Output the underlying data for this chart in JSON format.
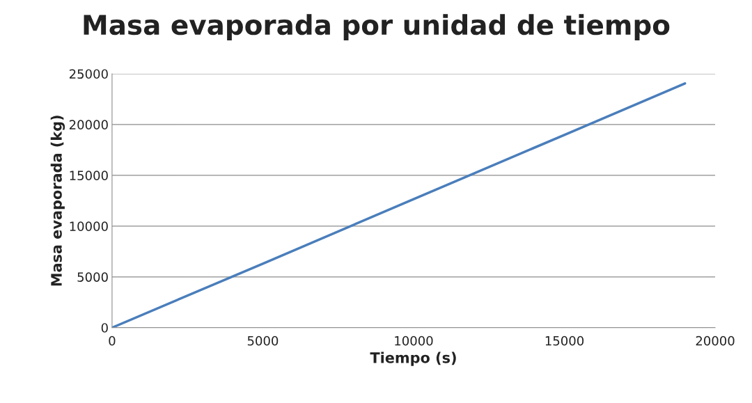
{
  "chart_data": {
    "type": "line",
    "title": "Masa evaporada por unidad de tiempo",
    "xlabel": "Tiempo (s)",
    "ylabel": "Masa evaporada (kg)",
    "x": [
      0,
      5000,
      10000,
      15000,
      19000
    ],
    "series": [
      {
        "color": "#4a7ebb",
        "values": [
          0,
          6300,
          12650,
          18980,
          24050
        ]
      }
    ],
    "xlim": [
      0,
      20000
    ],
    "xticks": [
      0,
      5000,
      10000,
      15000,
      20000
    ],
    "ylim": [
      0,
      25000
    ],
    "yticks": [
      0,
      5000,
      10000,
      15000,
      20000,
      25000
    ],
    "grid": "y",
    "legend": false,
    "marker": "none",
    "line_style": "solid"
  }
}
